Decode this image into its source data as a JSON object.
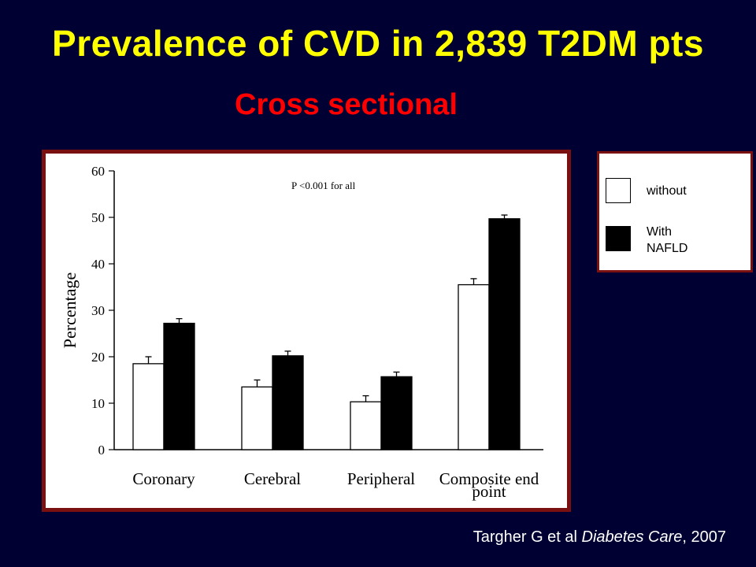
{
  "slide": {
    "title": "Prevalence of CVD in 2,839 T2DM pts",
    "subtitle": "Cross sectional",
    "citation": {
      "authors": "Targher G et al ",
      "journal": "Diabetes Care",
      "year": ", 2007"
    }
  },
  "legend": {
    "without_label": "without",
    "with_label_line1": "With",
    "with_label_line2": "NAFLD"
  },
  "colors": {
    "background": "#000033",
    "title": "#ffff00",
    "subtitle": "#ff0000",
    "frame": "#7a1010",
    "without_fill": "#ffffff",
    "with_fill": "#000000"
  },
  "chart_data": {
    "type": "bar",
    "annotation": "P <0.001 for all",
    "ylabel": "Percentage",
    "xlabel": "",
    "ylim": [
      0,
      60
    ],
    "yticks": [
      "0",
      "10",
      "20",
      "30",
      "40",
      "50",
      "60"
    ],
    "categories": [
      "Coronary",
      "Cerebral",
      "Peripheral",
      "Composite end point"
    ],
    "category_lines": [
      [
        "Coronary"
      ],
      [
        "Cerebral"
      ],
      [
        "Peripheral"
      ],
      [
        "Composite end",
        "point"
      ]
    ],
    "series": [
      {
        "name": "without",
        "values": [
          18.5,
          13.5,
          10.3,
          35.5
        ],
        "errors": [
          1.5,
          1.5,
          1.3,
          1.3
        ]
      },
      {
        "name": "With NAFLD",
        "values": [
          27.2,
          20.2,
          15.7,
          49.7
        ],
        "errors": [
          1.0,
          1.0,
          1.0,
          0.8
        ]
      }
    ],
    "grid": false,
    "legend_position": "right"
  }
}
